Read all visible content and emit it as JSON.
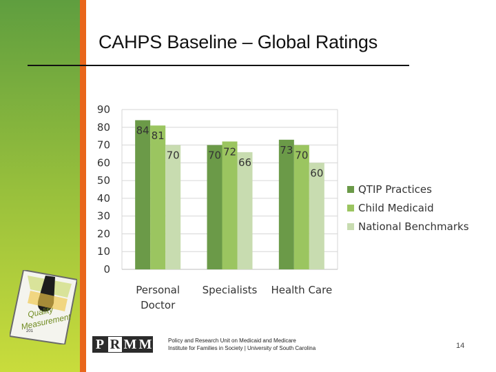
{
  "slide": {
    "title": "CAHPS Baseline – Global Ratings",
    "page_number": "14",
    "footer_line1": "Policy and Research Unit on Medicaid and Medicare",
    "footer_line2": "Institute for Families in Society | University of South Carolina",
    "logo_letters": [
      "P",
      "R",
      "M",
      "M"
    ],
    "badge_line1": "Quality",
    "badge_line2": "Measurement",
    "badge_year": "201"
  },
  "colors": {
    "left_bar_top": "#5f9e3f",
    "accent_orange": "#e9661b",
    "series_qtip": "#6b9a48",
    "series_child": "#9bc560",
    "series_national": "#c8dcb0"
  },
  "chart_data": {
    "type": "bar",
    "title": "",
    "xlabel": "",
    "ylabel": "",
    "ylim": [
      0,
      90
    ],
    "yticks": [
      0,
      10,
      20,
      30,
      40,
      50,
      60,
      70,
      80,
      90
    ],
    "grid": true,
    "legend_position": "right",
    "categories": [
      [
        "Personal",
        "Doctor"
      ],
      [
        "Specialists"
      ],
      [
        "Health Care"
      ]
    ],
    "series": [
      {
        "name": "QTIP Practices",
        "values": [
          84,
          70,
          73
        ],
        "color": "#6b9a48"
      },
      {
        "name": "Child Medicaid",
        "values": [
          81,
          72,
          70
        ],
        "color": "#9bc560"
      },
      {
        "name": "National Benchmarks",
        "values": [
          70,
          66,
          60
        ],
        "color": "#c8dcb0"
      }
    ]
  }
}
